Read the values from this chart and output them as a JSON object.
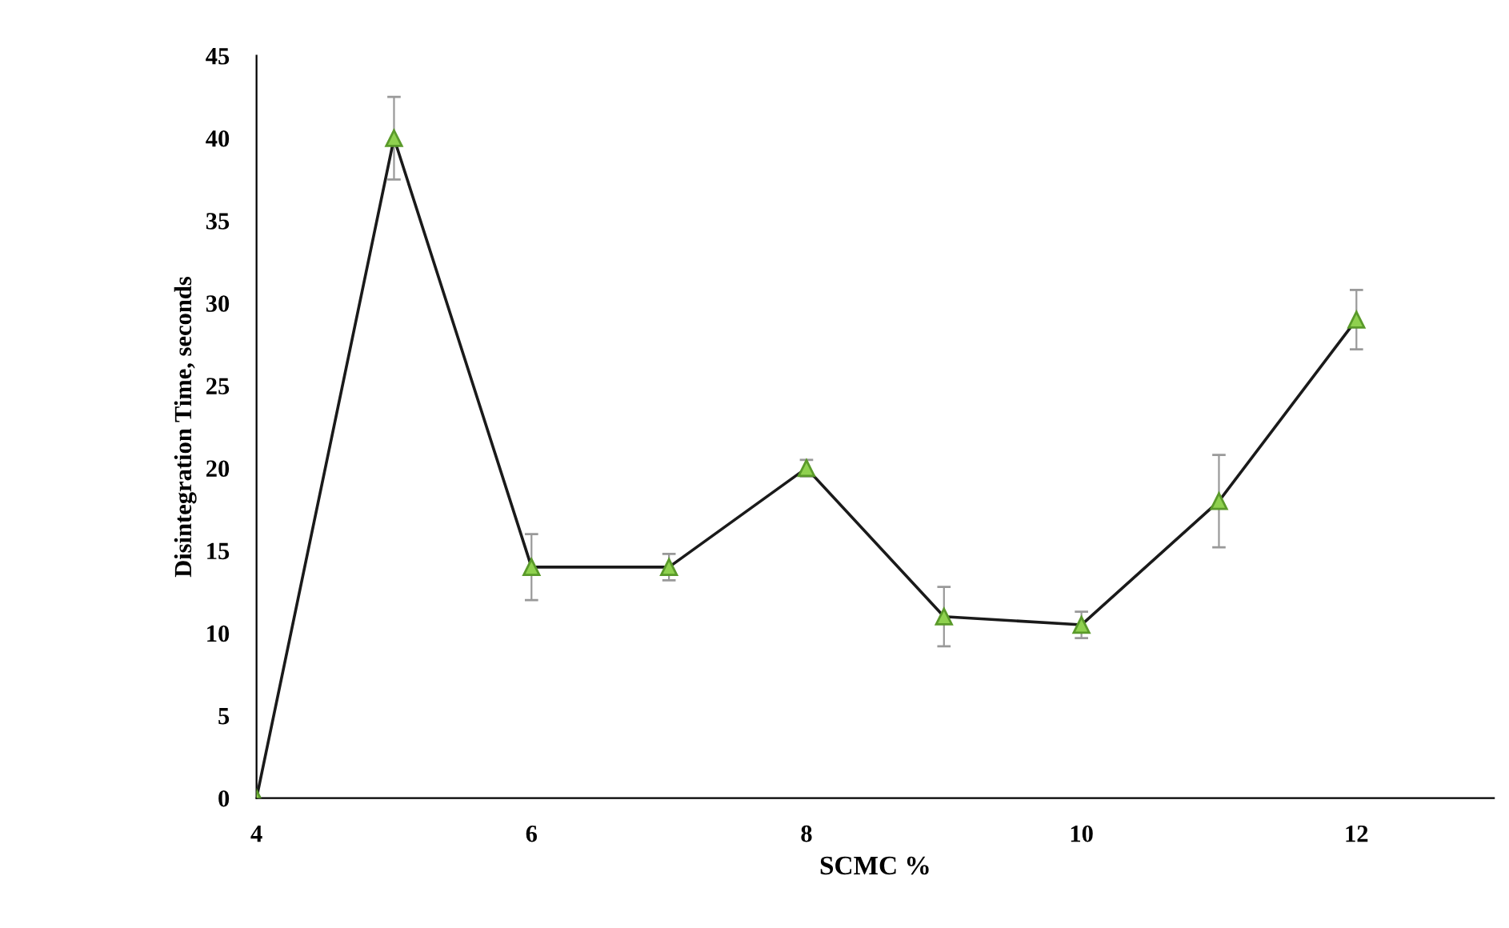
{
  "chart_data": {
    "type": "line",
    "xlabel": "SCMC %",
    "ylabel": "Disintegration Time, seconds",
    "x": [
      4,
      5,
      6,
      7,
      8,
      9,
      10,
      11,
      12
    ],
    "series": [
      {
        "color": "#1a1a1a",
        "values": [
          0,
          40,
          14,
          14,
          20,
          11,
          10.5,
          18,
          29
        ],
        "errors": [
          null,
          2.5,
          2,
          0.8,
          0.5,
          1.8,
          0.8,
          2.8,
          1.8
        ]
      }
    ],
    "marker": "triangle",
    "line_style": "solid",
    "xlim": [
      4,
      13
    ],
    "xticks": [
      4,
      6,
      8,
      10,
      12
    ],
    "ylim": [
      0,
      45
    ],
    "yticks": [
      0,
      5,
      10,
      15,
      20,
      25,
      30,
      35,
      40,
      45
    ],
    "grid": false,
    "legend": false
  }
}
